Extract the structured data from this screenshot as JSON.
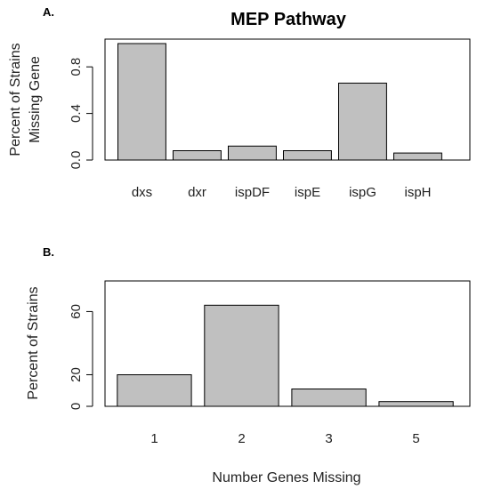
{
  "chart_data": [
    {
      "type": "bar",
      "panel": "A.",
      "title": "MEP Pathway",
      "categories": [
        "dxs",
        "dxr",
        "ispDF",
        "ispE",
        "ispG",
        "ispH"
      ],
      "values": [
        1.0,
        0.08,
        0.12,
        0.08,
        0.66,
        0.06
      ],
      "ylabel": "Percent of Strains Missing Gene",
      "ylabel_lines": [
        "Percent of Strains",
        "Missing Gene"
      ],
      "xlabel": "",
      "ylim": [
        0,
        1.0
      ],
      "yticks": [
        0.0,
        0.4,
        0.8
      ],
      "ytick_labels": [
        "0.0",
        "0.4",
        "0.8"
      ],
      "bar_color": "#c0c0c0",
      "grid": false
    },
    {
      "type": "bar",
      "panel": "B.",
      "title": "",
      "categories": [
        "1",
        "2",
        "3",
        "5"
      ],
      "values": [
        20,
        64,
        11,
        3
      ],
      "ylabel": "Percent of Strains",
      "ylabel_lines": [
        "Percent of Strains"
      ],
      "xlabel": "Number Genes Missing",
      "ylim": [
        0,
        76
      ],
      "yticks": [
        0,
        20,
        60
      ],
      "ytick_labels": [
        "0",
        "20",
        "60"
      ],
      "bar_color": "#c0c0c0",
      "grid": false
    }
  ]
}
